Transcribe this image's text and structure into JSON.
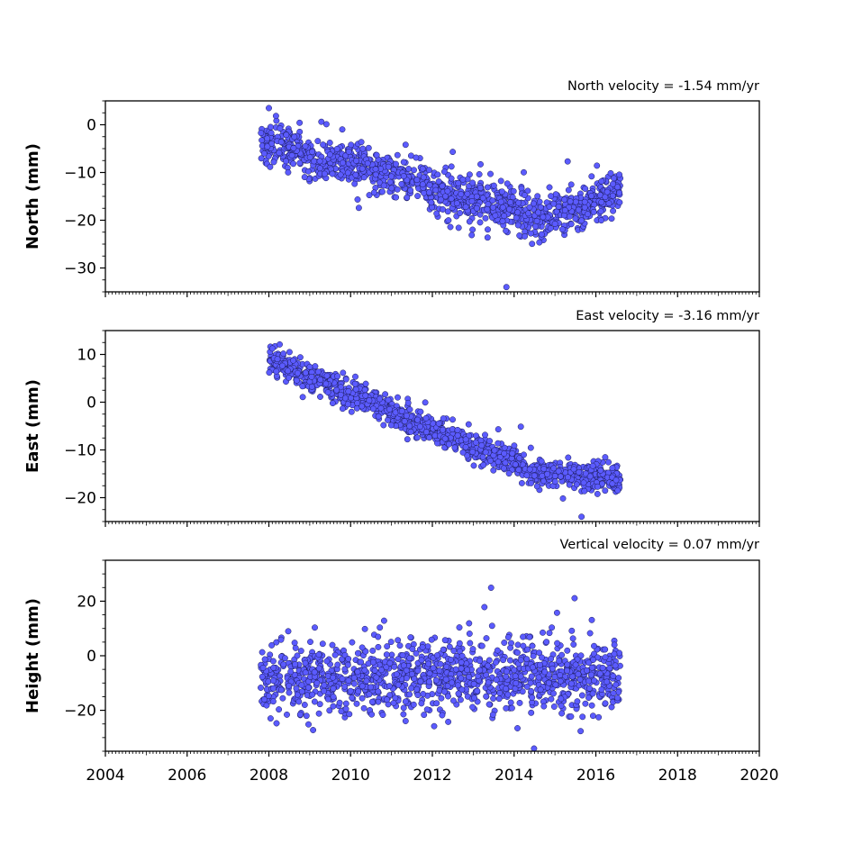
{
  "colors": {
    "marker_fill": "#5b5bff",
    "marker_edge": "#1a1a55",
    "axis": "#000000"
  },
  "chart_data": [
    {
      "type": "scatter",
      "ylabel": "North (mm)",
      "velocity_label": "North velocity = -1.54 mm/yr",
      "xlim": [
        2004,
        2020
      ],
      "ylim": [
        -35,
        5
      ],
      "yticks": [
        0,
        -10,
        -20,
        -30
      ],
      "yticklabels": [
        "0",
        "−10",
        "−20",
        "−30"
      ],
      "xticks": [
        2004,
        2006,
        2008,
        2010,
        2012,
        2014,
        2016,
        2018,
        2020
      ],
      "xticklabels": [],
      "points": {
        "x_start": 2007.8,
        "x_end": 2016.6,
        "trend": [
          [
            2007.8,
            -3
          ],
          [
            2009.0,
            -7
          ],
          [
            2010.5,
            -9
          ],
          [
            2011.5,
            -12
          ],
          [
            2012.5,
            -15
          ],
          [
            2013.5,
            -16.5
          ],
          [
            2014.5,
            -19
          ],
          [
            2015.2,
            -18.5
          ],
          [
            2016.6,
            -14
          ]
        ],
        "scatter_sd": 2.2
      }
    },
    {
      "type": "scatter",
      "ylabel": "East (mm)",
      "velocity_label": "East velocity = -3.16 mm/yr",
      "xlim": [
        2004,
        2020
      ],
      "ylim": [
        -25,
        15
      ],
      "yticks": [
        10,
        0,
        -10,
        -20
      ],
      "yticklabels": [
        "10",
        "0",
        "−10",
        "−20"
      ],
      "xticks": [
        2004,
        2006,
        2008,
        2010,
        2012,
        2014,
        2016,
        2018,
        2020
      ],
      "xticklabels": [],
      "points": {
        "x_start": 2008.0,
        "x_end": 2016.6,
        "trend": [
          [
            2008.0,
            9
          ],
          [
            2009.0,
            5
          ],
          [
            2010.0,
            2
          ],
          [
            2011.0,
            -2
          ],
          [
            2012.0,
            -5.5
          ],
          [
            2013.0,
            -9.5
          ],
          [
            2014.0,
            -12.5
          ],
          [
            2014.5,
            -14.5
          ],
          [
            2015.5,
            -15.5
          ],
          [
            2016.6,
            -16.5
          ]
        ],
        "scatter_sd": 1.4
      }
    },
    {
      "type": "scatter",
      "ylabel": "Height (mm)",
      "velocity_label": "Vertical velocity = 0.07 mm/yr",
      "xlim": [
        2004,
        2020
      ],
      "ylim": [
        -35,
        35
      ],
      "yticks": [
        20,
        0,
        -20
      ],
      "yticklabels": [
        "20",
        "0",
        "−20"
      ],
      "xticks": [
        2004,
        2006,
        2008,
        2010,
        2012,
        2014,
        2016,
        2018,
        2020
      ],
      "xticklabels": [
        "2004",
        "2006",
        "2008",
        "2010",
        "2012",
        "2014",
        "2016",
        "2018",
        "2020"
      ],
      "points": {
        "x_start": 2007.8,
        "x_end": 2016.6,
        "trend": [
          [
            2007.8,
            -8
          ],
          [
            2016.6,
            -7.5
          ]
        ],
        "scatter_sd": 6.5
      }
    }
  ]
}
